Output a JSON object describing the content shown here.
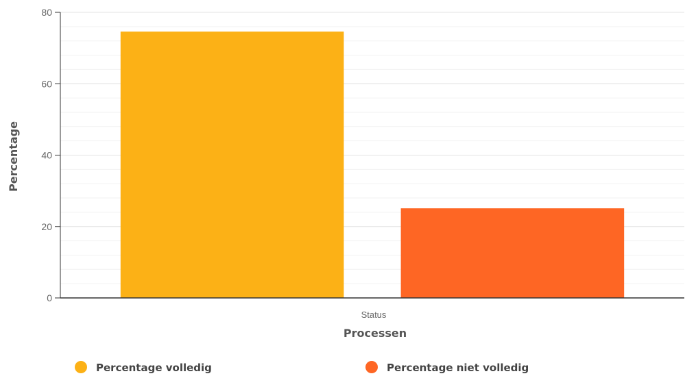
{
  "chart_data": {
    "type": "bar",
    "categories": [
      "Status"
    ],
    "series": [
      {
        "name": "Percentage volledig",
        "values": [
          74.6
        ],
        "color": "#fcb116"
      },
      {
        "name": "Percentage niet volledig",
        "values": [
          25.1
        ],
        "color": "#fe6624"
      }
    ],
    "xlabel": "Processen",
    "ylabel": "Percentage",
    "ylim": [
      0,
      80
    ],
    "yticks": [
      0,
      20,
      40,
      60,
      80
    ],
    "grid": true,
    "minor_grid": true,
    "legend": "bottom"
  }
}
